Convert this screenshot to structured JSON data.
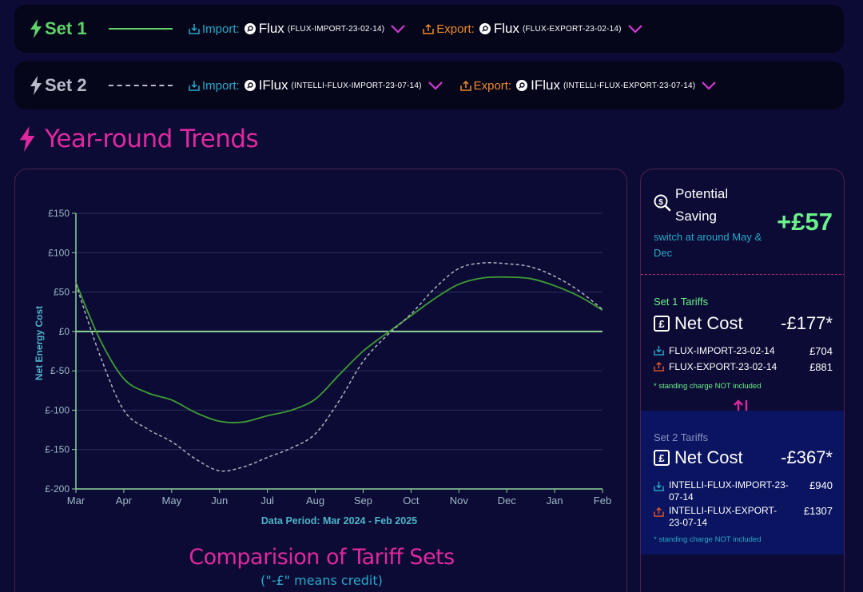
{
  "sets": [
    {
      "label": "Set 1",
      "color": "#5fd36a",
      "line_style": "solid",
      "import": {
        "label": "Import:",
        "name": "Flux",
        "code": "(FLUX-IMPORT-23-02-14)"
      },
      "export": {
        "label": "Export:",
        "name": "Flux",
        "code": "(FLUX-EXPORT-23-02-14)"
      }
    },
    {
      "label": "Set 2",
      "color": "#b9bcc8",
      "line_style": "dashed",
      "import": {
        "label": "Import:",
        "name": "IFlux",
        "code": "(INTELLI-FLUX-IMPORT-23-07-14)"
      },
      "export": {
        "label": "Export:",
        "name": "IFlux",
        "code": "(INTELLI-FLUX-EXPORT-23-07-14)"
      }
    }
  ],
  "section": {
    "title": "Year-round Trends"
  },
  "chart_data": {
    "type": "line",
    "ylabel": "Net Energy Cost",
    "xlabel": "Data Period: Mar 2024 - Feb 2025",
    "categories": [
      "Mar",
      "Apr",
      "May",
      "Jun",
      "Jul",
      "Aug",
      "Sep",
      "Oct",
      "Nov",
      "Dec",
      "Jan",
      "Feb"
    ],
    "y_ticks": [
      "£150",
      "£100",
      "£50",
      "£0",
      "£-50",
      "£-100",
      "£-150",
      "£-200"
    ],
    "ylim": [
      -200,
      150
    ],
    "grid": true,
    "series": [
      {
        "name": "Set 1",
        "color": "#3f9d32",
        "dash": false,
        "x": [
          0,
          0.5,
          1,
          1.5,
          2,
          2.5,
          3,
          3.5,
          4,
          4.5,
          5,
          5.5,
          6,
          6.5,
          7,
          7.5,
          8,
          8.5,
          9,
          9.5,
          10,
          10.5,
          11
        ],
        "values": [
          62,
          -10,
          -60,
          -78,
          -87,
          -103,
          -114,
          -115,
          -107,
          -100,
          -86,
          -55,
          -25,
          -2,
          20,
          42,
          60,
          68,
          69,
          67,
          58,
          45,
          27
        ]
      },
      {
        "name": "Set 2",
        "color": "#b0b3c0",
        "dash": true,
        "x": [
          0,
          0.5,
          1,
          1.5,
          2,
          2.5,
          3,
          3.5,
          4,
          4.5,
          5,
          5.5,
          6,
          6.5,
          7,
          7.5,
          8,
          8.5,
          9,
          9.5,
          10,
          10.5,
          11
        ],
        "values": [
          60,
          -30,
          -100,
          -124,
          -140,
          -162,
          -177,
          -172,
          -160,
          -148,
          -130,
          -88,
          -38,
          -5,
          22,
          55,
          80,
          87,
          86,
          82,
          70,
          52,
          28
        ]
      }
    ]
  },
  "compare": {
    "title": "Comparision of Tariff Sets",
    "subtitle": "(\"-£\" means credit)"
  },
  "saving": {
    "label": "Potential Saving",
    "value": "+£57",
    "note": "switch at around May & Dec"
  },
  "tariff_sets": [
    {
      "heading": "Set 1 Tariffs",
      "net_label": "Net Cost",
      "net_value": "-£177*",
      "items": [
        {
          "kind": "import",
          "name": "FLUX-IMPORT-23-02-14",
          "amount": "£704"
        },
        {
          "kind": "export",
          "name": "FLUX-EXPORT-23-02-14",
          "amount": "£881"
        }
      ],
      "note": "* standing charge NOT included"
    },
    {
      "heading": "Set 2 Tariffs",
      "net_label": "Net Cost",
      "net_value": "-£367*",
      "items": [
        {
          "kind": "import",
          "name": "INTELLI-FLUX-IMPORT-23-07-14",
          "amount": "£940"
        },
        {
          "kind": "export",
          "name": "INTELLI-FLUX-EXPORT-23-07-14",
          "amount": "£1307"
        }
      ],
      "note": "* standing charge NOT included"
    }
  ],
  "colors": {
    "accent": "#e0289e",
    "import": "#29a9c9",
    "export": "#f08a2a",
    "positive": "#6bf08a",
    "chevron": "#d13ad0"
  }
}
